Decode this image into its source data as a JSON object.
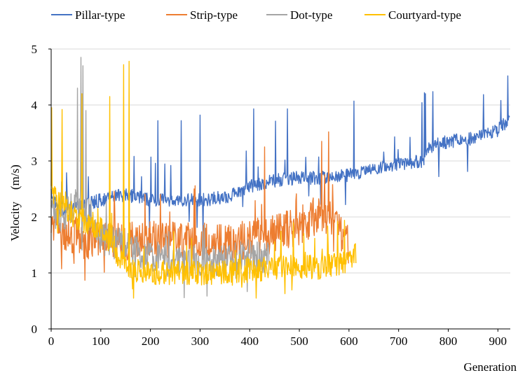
{
  "chart_data": {
    "type": "line",
    "xlabel": "Generation",
    "ylabel": "Velocity　(m/s)",
    "xlim": [
      0,
      925
    ],
    "ylim": [
      0,
      5
    ],
    "xticks": [
      "0",
      "100",
      "200",
      "300",
      "400",
      "500",
      "600",
      "700",
      "800",
      "900"
    ],
    "yticks": [
      "0",
      "1",
      "2",
      "3",
      "4",
      "5"
    ],
    "grid": "horizontal",
    "legend_position": "top",
    "series": [
      {
        "name": "Pillar-type",
        "color": "#4472C4",
        "length": 925,
        "noise": 0.12,
        "spike_rate": 0.03,
        "spike_max": 1.1,
        "x": [
          0,
          5,
          20,
          50,
          100,
          150,
          200,
          250,
          300,
          350,
          400,
          450,
          500,
          550,
          600,
          650,
          700,
          750,
          760,
          800,
          850,
          900,
          924
        ],
        "y": [
          2.45,
          2.3,
          2.1,
          2.2,
          2.3,
          2.4,
          2.3,
          2.3,
          2.3,
          2.35,
          2.55,
          2.65,
          2.7,
          2.7,
          2.75,
          2.85,
          2.95,
          3.0,
          3.25,
          3.35,
          3.4,
          3.55,
          3.75
        ],
        "peaks": [
          {
            "x": 920,
            "y": 4.52
          },
          {
            "x": 752,
            "y": 4.22
          },
          {
            "x": 754,
            "y": 4.2
          },
          {
            "x": 610,
            "y": 4.07
          },
          {
            "x": 476,
            "y": 3.93
          },
          {
            "x": 408,
            "y": 3.93
          },
          {
            "x": 906,
            "y": 4.08
          },
          {
            "x": 300,
            "y": 3.82
          },
          {
            "x": 262,
            "y": 3.72
          },
          {
            "x": 215,
            "y": 3.72
          }
        ]
      },
      {
        "name": "Strip-type",
        "color": "#ED7D31",
        "length": 600,
        "noise": 0.35,
        "spike_rate": 0.05,
        "spike_max": 0.9,
        "x": [
          0,
          10,
          50,
          100,
          150,
          200,
          250,
          300,
          350,
          400,
          450,
          500,
          550,
          600
        ],
        "y": [
          2.0,
          1.8,
          1.65,
          1.55,
          1.55,
          1.6,
          1.6,
          1.55,
          1.55,
          1.6,
          1.7,
          1.85,
          2.1,
          1.5
        ],
        "peaks": [
          {
            "x": 559,
            "y": 3.52
          },
          {
            "x": 545,
            "y": 3.35
          },
          {
            "x": 430,
            "y": 3.25
          }
        ]
      },
      {
        "name": "Dot-type",
        "color": "#A5A5A5",
        "length": 440,
        "noise": 0.3,
        "spike_rate": 0.04,
        "spike_max": 1.0,
        "x": [
          0,
          20,
          50,
          80,
          100,
          150,
          200,
          250,
          300,
          350,
          400,
          440
        ],
        "y": [
          2.2,
          1.9,
          2.3,
          2.0,
          1.6,
          1.5,
          1.3,
          1.2,
          1.2,
          1.2,
          1.3,
          1.3
        ],
        "peaks": [
          {
            "x": 60,
            "y": 4.85
          },
          {
            "x": 64,
            "y": 4.7
          },
          {
            "x": 53,
            "y": 4.3
          },
          {
            "x": 70,
            "y": 3.9
          }
        ]
      },
      {
        "name": "Courtyard-type",
        "color": "#FFC000",
        "length": 615,
        "noise": 0.22,
        "spike_rate": 0.04,
        "spike_max": 0.9,
        "x": [
          0,
          20,
          50,
          100,
          130,
          150,
          200,
          250,
          300,
          350,
          400,
          450,
          500,
          550,
          600,
          615
        ],
        "y": [
          2.4,
          2.2,
          2.0,
          1.8,
          1.4,
          1.05,
          1.0,
          1.0,
          1.0,
          1.0,
          1.05,
          1.1,
          1.1,
          1.1,
          1.2,
          1.35
        ],
        "peaks": [
          {
            "x": 157,
            "y": 4.78
          },
          {
            "x": 146,
            "y": 4.72
          },
          {
            "x": 1,
            "y": 3.95
          },
          {
            "x": 22,
            "y": 3.92
          },
          {
            "x": 62,
            "y": 4.2
          },
          {
            "x": 118,
            "y": 4.15
          }
        ]
      }
    ]
  }
}
